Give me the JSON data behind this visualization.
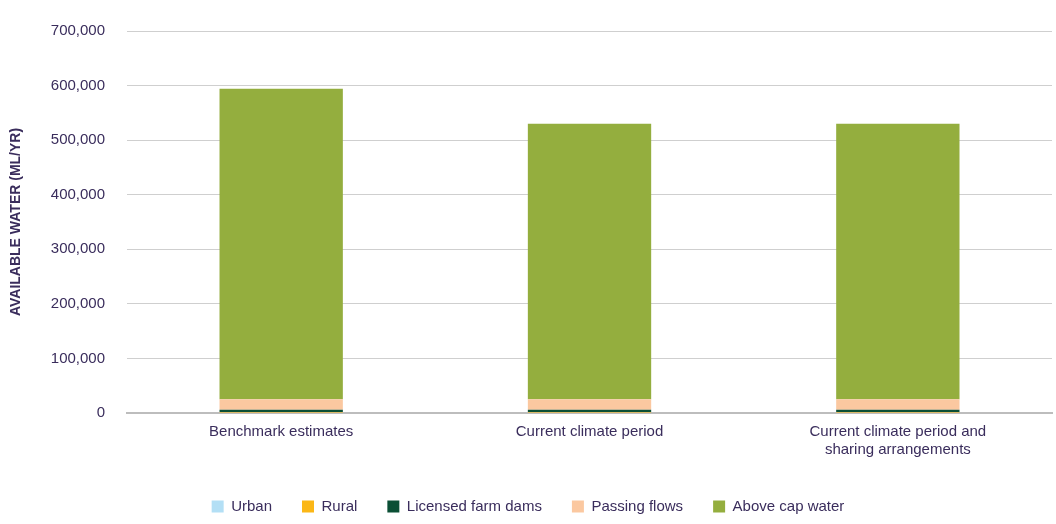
{
  "chart_data": {
    "type": "bar",
    "stacked": true,
    "ylabel": "AVAILABLE WATER (ML/YR)",
    "categories": [
      "Benchmark estimates",
      "Current climate period",
      "Current climate period and sharing arrangements"
    ],
    "series": [
      {
        "name": "Urban",
        "color": "#b3dff5",
        "values": [
          null,
          null,
          null
        ]
      },
      {
        "name": "Rural",
        "color": "#fbb716",
        "values": [
          2000,
          2000,
          2000
        ]
      },
      {
        "name": "Licensed farm dams",
        "color": "#0b4f35",
        "values": [
          4000,
          4000,
          4000
        ]
      },
      {
        "name": "Passing flows",
        "color": "#fbc8a0",
        "values": [
          19000,
          19000,
          19000
        ]
      },
      {
        "name": "Above cap water",
        "color": "#94ae3e",
        "values": [
          569000,
          505000,
          505000
        ]
      }
    ],
    "ylim": [
      0,
      700000
    ],
    "yticks": [
      0,
      {
        "value": 100000,
        "label": "100,000"
      },
      {
        "value": 200000,
        "label": "200,000"
      },
      {
        "value": 300000,
        "label": "300,000"
      },
      {
        "value": 400000,
        "label": "400,000"
      },
      {
        "value": 500000,
        "label": "500,000"
      },
      {
        "value": 600000,
        "label": "600,000"
      },
      {
        "value": 700000,
        "label": "700,000"
      }
    ],
    "grid": "y",
    "legend": "bottom"
  }
}
